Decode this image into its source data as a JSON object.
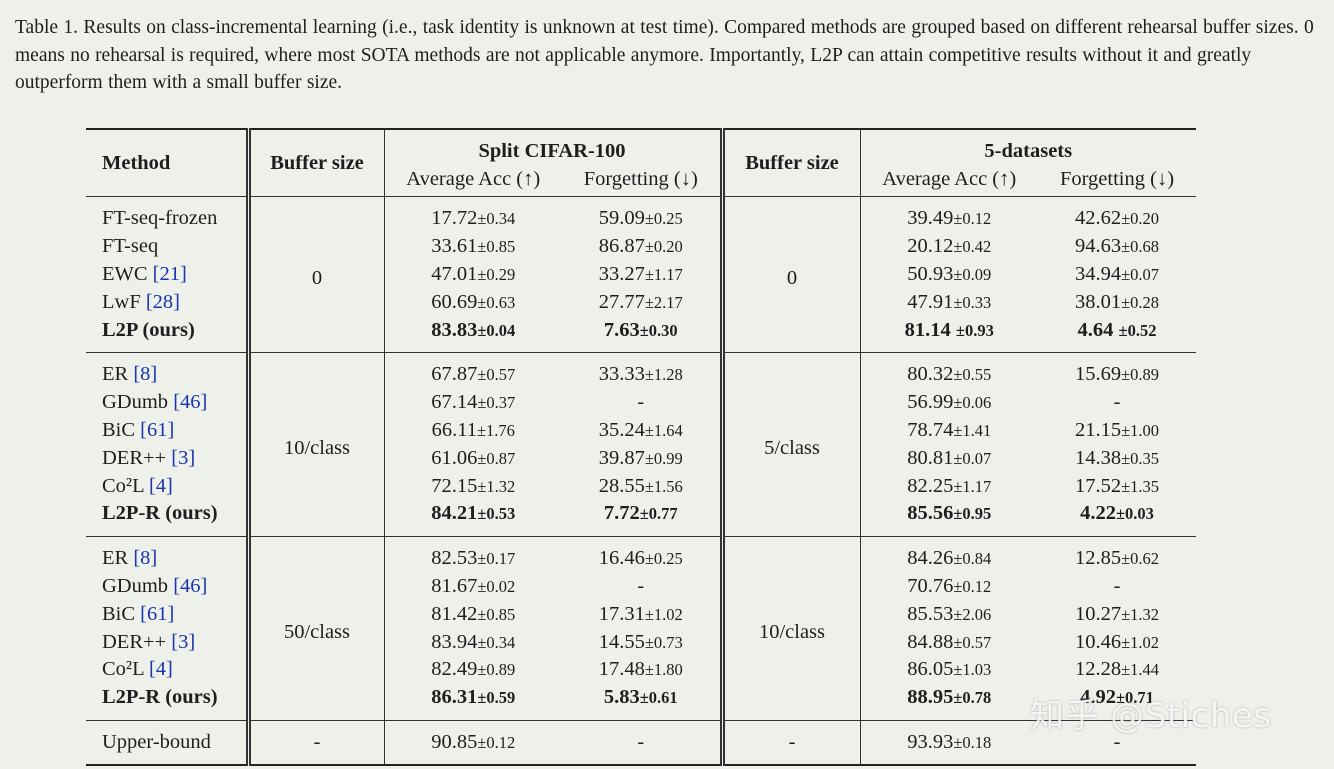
{
  "caption": "Table 1. Results on class-incremental learning (i.e., task identity is unknown at test time). Compared methods are grouped based on different rehearsal buffer sizes. 0 means no rehearsal is required, where most SOTA methods are not applicable anymore. Importantly, L2P can attain competitive results without it and greatly outperform them with a small buffer size.",
  "headers": {
    "method": "Method",
    "buffer1": "Buffer size",
    "dataset1": "Split CIFAR-100",
    "buffer2": "Buffer size",
    "dataset2": "5-datasets",
    "avg_acc": "Average Acc (↑)",
    "forgetting": "Forgetting (↓)"
  },
  "groups": [
    {
      "buffer1": "0",
      "buffer2": "0",
      "rows": [
        {
          "name": "FT-seq-frozen",
          "ref": "",
          "c_acc": "17.72",
          "c_acc_pm": "±0.34",
          "c_fg": "59.09",
          "c_fg_pm": "±0.25",
          "f_acc": "39.49",
          "f_acc_pm": "±0.12",
          "f_fg": "42.62",
          "f_fg_pm": "±0.20"
        },
        {
          "name": "FT-seq",
          "ref": "",
          "c_acc": "33.61",
          "c_acc_pm": "±0.85",
          "c_fg": "86.87",
          "c_fg_pm": "±0.20",
          "f_acc": "20.12",
          "f_acc_pm": "±0.42",
          "f_fg": "94.63",
          "f_fg_pm": "±0.68"
        },
        {
          "name": "EWC ",
          "ref": "[21]",
          "c_acc": "47.01",
          "c_acc_pm": "±0.29",
          "c_fg": "33.27",
          "c_fg_pm": "±1.17",
          "f_acc": "50.93",
          "f_acc_pm": "±0.09",
          "f_fg": "34.94",
          "f_fg_pm": "±0.07"
        },
        {
          "name": "LwF ",
          "ref": "[28]",
          "c_acc": "60.69",
          "c_acc_pm": "±0.63",
          "c_fg": "27.77",
          "c_fg_pm": "±2.17",
          "f_acc": "47.91",
          "f_acc_pm": "±0.33",
          "f_fg": "38.01",
          "f_fg_pm": "±0.28"
        },
        {
          "name": "L2P (ours)",
          "ref": "",
          "bold": true,
          "c_acc": "83.83",
          "c_acc_pm": "±0.04",
          "c_fg": "7.63",
          "c_fg_pm": "±0.30",
          "f_acc": "81.14 ",
          "f_acc_pm": "±0.93",
          "f_fg": "4.64 ",
          "f_fg_pm": "±0.52"
        }
      ]
    },
    {
      "buffer1": "10/class",
      "buffer2": "5/class",
      "rows": [
        {
          "name": "ER ",
          "ref": "[8]",
          "c_acc": "67.87",
          "c_acc_pm": "±0.57",
          "c_fg": "33.33",
          "c_fg_pm": "±1.28",
          "f_acc": "80.32",
          "f_acc_pm": "±0.55",
          "f_fg": "15.69",
          "f_fg_pm": "±0.89"
        },
        {
          "name": "GDumb ",
          "ref": "[46]",
          "c_acc": "67.14",
          "c_acc_pm": "±0.37",
          "c_fg": "-",
          "c_fg_pm": "",
          "f_acc": "56.99",
          "f_acc_pm": "±0.06",
          "f_fg": "-",
          "f_fg_pm": ""
        },
        {
          "name": "BiC ",
          "ref": "[61]",
          "c_acc": "66.11",
          "c_acc_pm": "±1.76",
          "c_fg": "35.24",
          "c_fg_pm": "±1.64",
          "f_acc": "78.74",
          "f_acc_pm": "±1.41",
          "f_fg": "21.15",
          "f_fg_pm": "±1.00"
        },
        {
          "name": "DER++ ",
          "ref": "[3]",
          "c_acc": "61.06",
          "c_acc_pm": "±0.87",
          "c_fg": "39.87",
          "c_fg_pm": "±0.99",
          "f_acc": "80.81",
          "f_acc_pm": "±0.07",
          "f_fg": "14.38",
          "f_fg_pm": "±0.35"
        },
        {
          "name": "Co²L ",
          "ref": "[4]",
          "c_acc": "72.15",
          "c_acc_pm": "±1.32",
          "c_fg": "28.55",
          "c_fg_pm": "±1.56",
          "f_acc": "82.25",
          "f_acc_pm": "±1.17",
          "f_fg": "17.52",
          "f_fg_pm": "±1.35"
        },
        {
          "name": "L2P-R (ours)",
          "ref": "",
          "bold": true,
          "c_acc": "84.21",
          "c_acc_pm": "±0.53",
          "c_fg": "7.72",
          "c_fg_pm": "±0.77",
          "f_acc": "85.56",
          "f_acc_pm": "±0.95",
          "f_fg": "4.22",
          "f_fg_pm": "±0.03"
        }
      ]
    },
    {
      "buffer1": "50/class",
      "buffer2": "10/class",
      "rows": [
        {
          "name": "ER ",
          "ref": "[8]",
          "c_acc": "82.53",
          "c_acc_pm": "±0.17",
          "c_fg": "16.46",
          "c_fg_pm": "±0.25",
          "f_acc": "84.26",
          "f_acc_pm": "±0.84",
          "f_fg": "12.85",
          "f_fg_pm": "±0.62"
        },
        {
          "name": "GDumb ",
          "ref": "[46]",
          "c_acc": "81.67",
          "c_acc_pm": "±0.02",
          "c_fg": "-",
          "c_fg_pm": "",
          "f_acc": "70.76",
          "f_acc_pm": "±0.12",
          "f_fg": "-",
          "f_fg_pm": ""
        },
        {
          "name": "BiC ",
          "ref": "[61]",
          "c_acc": "81.42",
          "c_acc_pm": "±0.85",
          "c_fg": "17.31",
          "c_fg_pm": "±1.02",
          "f_acc": "85.53",
          "f_acc_pm": "±2.06",
          "f_fg": "10.27",
          "f_fg_pm": "±1.32"
        },
        {
          "name": "DER++ ",
          "ref": "[3]",
          "c_acc": "83.94",
          "c_acc_pm": "±0.34",
          "c_fg": "14.55",
          "c_fg_pm": "±0.73",
          "f_acc": "84.88",
          "f_acc_pm": "±0.57",
          "f_fg": "10.46",
          "f_fg_pm": "±1.02"
        },
        {
          "name": "Co²L ",
          "ref": "[4]",
          "c_acc": "82.49",
          "c_acc_pm": "±0.89",
          "c_fg": "17.48",
          "c_fg_pm": "±1.80",
          "f_acc": "86.05",
          "f_acc_pm": "±1.03",
          "f_fg": "12.28",
          "f_fg_pm": "±1.44"
        },
        {
          "name": "L2P-R (ours)",
          "ref": "",
          "bold": true,
          "c_acc": "86.31",
          "c_acc_pm": "±0.59",
          "c_fg": "5.83",
          "c_fg_pm": "±0.61",
          "f_acc": "88.95",
          "f_acc_pm": "±0.78",
          "f_fg": "4.92",
          "f_fg_pm": "±0.71"
        }
      ]
    }
  ],
  "upper_bound": {
    "name": "Upper-bound",
    "buffer1": "-",
    "c_acc": "90.85",
    "c_acc_pm": "±0.12",
    "c_fg": "-",
    "buffer2": "-",
    "f_acc": "93.93",
    "f_acc_pm": "±0.18",
    "f_fg": "-"
  },
  "watermark": "知乎 @Stiches"
}
